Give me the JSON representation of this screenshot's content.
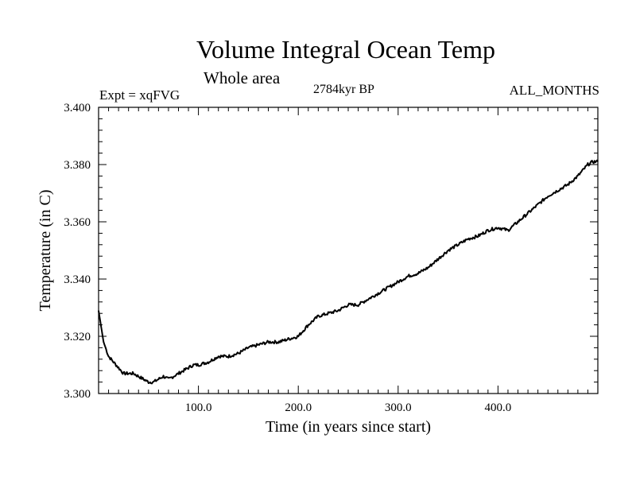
{
  "chart_data": {
    "type": "line",
    "title": "Volume Integral Ocean Temp",
    "subtitle": "Whole area",
    "left_label": "Expt = xqFVG",
    "center_label": "2784kyr BP",
    "right_label": "ALL_MONTHS",
    "xlabel": "Time (in years since start)",
    "ylabel": "Temperature (in C)",
    "xlim": [
      0,
      500
    ],
    "ylim": [
      3.3,
      3.4
    ],
    "x_ticks": [
      100,
      200,
      300,
      400
    ],
    "x_tick_labels": [
      "100.0",
      "200.0",
      "300.0",
      "400.0"
    ],
    "y_ticks": [
      3.3,
      3.32,
      3.34,
      3.36,
      3.38,
      3.4
    ],
    "y_tick_labels": [
      "3.300",
      "3.320",
      "3.340",
      "3.360",
      "3.380",
      "3.400"
    ],
    "series": [
      {
        "name": "Volume Integral Ocean Temp",
        "x": [
          0,
          5,
          10,
          15,
          20,
          25,
          30,
          35,
          40,
          45,
          50,
          55,
          60,
          65,
          70,
          75,
          80,
          85,
          90,
          95,
          100,
          110,
          120,
          130,
          140,
          150,
          160,
          170,
          180,
          190,
          200,
          210,
          220,
          230,
          240,
          250,
          260,
          270,
          280,
          290,
          300,
          310,
          320,
          330,
          340,
          350,
          360,
          370,
          380,
          390,
          400,
          410,
          420,
          430,
          440,
          450,
          460,
          470,
          480,
          490,
          495,
          500
        ],
        "values": [
          3.329,
          3.318,
          3.313,
          3.311,
          3.309,
          3.307,
          3.307,
          3.307,
          3.306,
          3.305,
          3.304,
          3.304,
          3.305,
          3.306,
          3.305,
          3.306,
          3.307,
          3.308,
          3.309,
          3.31,
          3.31,
          3.311,
          3.313,
          3.313,
          3.314,
          3.316,
          3.317,
          3.318,
          3.318,
          3.319,
          3.32,
          3.324,
          3.327,
          3.328,
          3.329,
          3.331,
          3.331,
          3.333,
          3.335,
          3.337,
          3.339,
          3.341,
          3.342,
          3.344,
          3.347,
          3.35,
          3.352,
          3.354,
          3.355,
          3.357,
          3.358,
          3.357,
          3.36,
          3.363,
          3.366,
          3.369,
          3.371,
          3.373,
          3.376,
          3.38,
          3.381,
          3.381
        ]
      }
    ]
  }
}
